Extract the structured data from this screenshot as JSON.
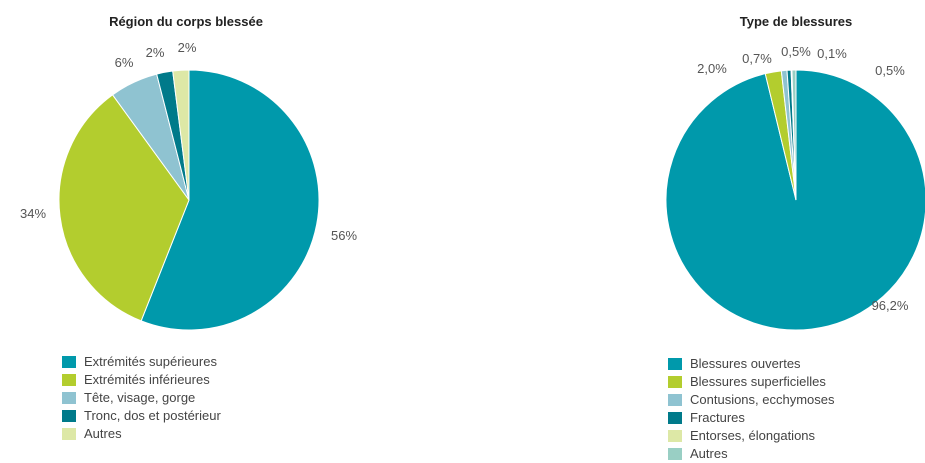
{
  "chart_data": [
    {
      "type": "pie",
      "title": "Région du corps blessée",
      "categories": [
        "Extrémités supérieures",
        "Extrémités inférieures",
        "Tête, visage, gorge",
        "Tronc, dos et postérieur",
        "Autres"
      ],
      "values": [
        56,
        34,
        6,
        2,
        2
      ],
      "labels": [
        "56%",
        "34%",
        "6%",
        "2%",
        "2%"
      ],
      "colors": [
        "#0099ab",
        "#b3cd2e",
        "#8fc3d1",
        "#007a8a",
        "#dde8a6"
      ],
      "legend_position": "bottom"
    },
    {
      "type": "pie",
      "title": "Type de blessures",
      "categories": [
        "Blessures ouvertes",
        "Blessures superficielles",
        "Contusions, ecchymoses",
        "Fractures",
        "Entorses, élongations",
        "Autres"
      ],
      "values": [
        96.2,
        2.0,
        0.7,
        0.5,
        0.1,
        0.5
      ],
      "labels": [
        "96,2%",
        "2,0%",
        "0,7%",
        "0,5%",
        "0,1%",
        "0,5%"
      ],
      "colors": [
        "#0099ab",
        "#b3cd2e",
        "#8fc3d1",
        "#007a8a",
        "#dde8a6",
        "#99cfc4"
      ],
      "legend_position": "bottom"
    }
  ]
}
